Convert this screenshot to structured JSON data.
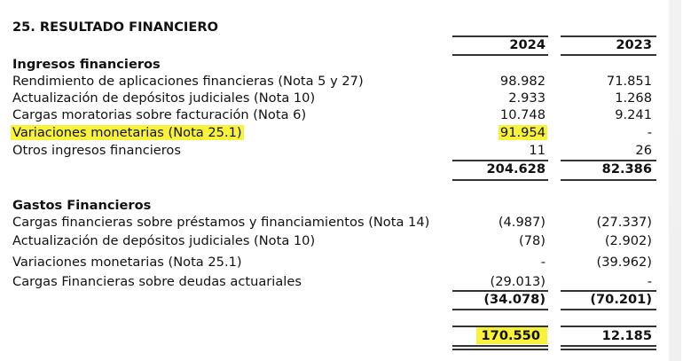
{
  "title": "25. RESULTADO FINANCIERO",
  "columns": [
    "2024",
    "2023"
  ],
  "highlight_color": "#f8f23a",
  "ingresos": {
    "heading": "Ingresos financieros",
    "rows": [
      {
        "label": "Rendimiento de aplicaciones financieras (Nota 5 y 27)",
        "y2024": "98.982",
        "y2023": "71.851"
      },
      {
        "label": "Actualización de depósitos judiciales (Nota 10)",
        "y2024": "2.933",
        "y2023": "1.268"
      },
      {
        "label": "Cargas moratorias sobre facturación (Nota 6)",
        "y2024": "10.748",
        "y2023": "9.241"
      },
      {
        "label": "Variaciones monetarias (Nota 25.1)",
        "y2024": "91.954",
        "y2023": "-",
        "highlighted": true
      },
      {
        "label": "Otros ingresos financieros",
        "y2024": "11",
        "y2023": "26"
      }
    ],
    "total": {
      "y2024": "204.628",
      "y2023": "82.386"
    }
  },
  "gastos": {
    "heading": "Gastos Financieros",
    "rows": [
      {
        "label": "Cargas financieras sobre préstamos y financiamientos (Nota 14)",
        "y2024": "(4.987)",
        "y2023": "(27.337)"
      },
      {
        "label": "Actualización de depósitos judiciales (Nota 10)",
        "y2024": "(78)",
        "y2023": "(2.902)"
      },
      {
        "label": "Variaciones monetarias (Nota 25.1)",
        "y2024": "-",
        "y2023": "(39.962)"
      },
      {
        "label": "Cargas Financieras sobre deudas actuariales",
        "y2024": "(29.013)",
        "y2023": "-"
      }
    ],
    "total": {
      "y2024": "(34.078)",
      "y2023": "(70.201)"
    }
  },
  "net_result": {
    "y2024": "170.550",
    "y2023": "12.185",
    "highlighted_2024": true
  }
}
